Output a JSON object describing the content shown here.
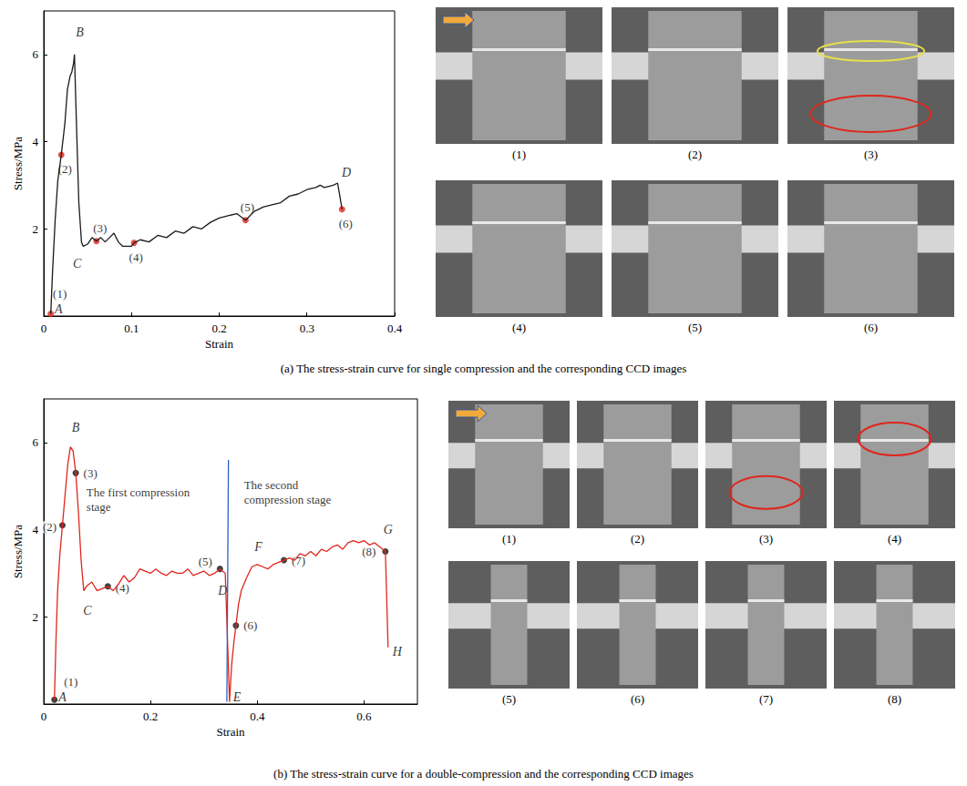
{
  "chart_data": [
    {
      "type": "line",
      "title": "(a) The stress-strain curve for single compression and the corresponding CCD images",
      "x_label": "Strain",
      "y_label": "Stress/MPa",
      "xlim": [
        0,
        0.4
      ],
      "xticks": [
        0,
        0.1,
        0.2,
        0.3,
        0.4
      ],
      "ylim": [
        0,
        7
      ],
      "yticks": [
        2,
        4,
        6
      ],
      "grid": false,
      "series": [
        {
          "type": "line",
          "color": "#1a1a1a",
          "x": [
            0.008,
            0.01,
            0.013,
            0.016,
            0.02,
            0.024,
            0.027,
            0.03,
            0.032,
            0.034,
            0.035,
            0.037,
            0.04,
            0.043,
            0.045,
            0.05,
            0.055,
            0.06,
            0.065,
            0.07,
            0.075,
            0.08,
            0.085,
            0.09,
            0.095,
            0.1,
            0.103,
            0.11,
            0.12,
            0.13,
            0.14,
            0.15,
            0.16,
            0.17,
            0.18,
            0.19,
            0.2,
            0.21,
            0.22,
            0.23,
            0.24,
            0.25,
            0.26,
            0.27,
            0.28,
            0.29,
            0.3,
            0.31,
            0.315,
            0.32,
            0.33,
            0.335,
            0.338,
            0.34
          ],
          "values": [
            0.05,
            1.0,
            2.2,
            3.1,
            3.7,
            4.4,
            5.2,
            5.5,
            5.6,
            5.8,
            6.0,
            4.6,
            2.6,
            1.7,
            1.6,
            1.65,
            1.8,
            1.72,
            1.8,
            1.7,
            1.8,
            1.9,
            1.7,
            1.6,
            1.6,
            1.6,
            1.68,
            1.75,
            1.7,
            1.85,
            1.8,
            1.95,
            1.9,
            2.05,
            2.0,
            2.15,
            2.25,
            2.3,
            2.35,
            2.2,
            2.4,
            2.5,
            2.55,
            2.6,
            2.75,
            2.8,
            2.9,
            2.95,
            3.0,
            2.95,
            3.0,
            3.05,
            2.7,
            2.45
          ]
        },
        {
          "type": "scatter",
          "color": "#e0261c",
          "marker": "circle",
          "x": [
            0.008,
            0.02,
            0.06,
            0.103,
            0.23,
            0.34
          ],
          "values": [
            0.05,
            3.7,
            1.72,
            1.68,
            2.2,
            2.45
          ],
          "point_labels": [
            "(1)",
            "(2)",
            "(3)",
            "(4)",
            "(5)",
            "(6)"
          ]
        }
      ],
      "annotations": [
        {
          "text": "A",
          "x": 0.017,
          "y": 0.15
        },
        {
          "text": "B",
          "x": 0.041,
          "y": 6.5
        },
        {
          "text": "C",
          "x": 0.038,
          "y": 1.2
        },
        {
          "text": "D",
          "x": 0.345,
          "y": 3.3
        }
      ],
      "image_labels": [
        "(1)",
        "(2)",
        "(3)",
        "(4)",
        "(5)",
        "(6)"
      ]
    },
    {
      "type": "line",
      "title": "(b) The stress-strain curve for a double-compression and the corresponding CCD images",
      "x_label": "Strain",
      "y_label": "Stress/MPa",
      "xlim": [
        0,
        0.7
      ],
      "xticks": [
        0,
        0.2,
        0.4,
        0.6
      ],
      "ylim": [
        0,
        7
      ],
      "yticks": [
        2,
        4,
        6
      ],
      "grid": false,
      "series": [
        {
          "type": "line",
          "color": "#e0261c",
          "x": [
            0.02,
            0.023,
            0.026,
            0.03,
            0.035,
            0.04,
            0.045,
            0.05,
            0.055,
            0.06,
            0.065,
            0.07,
            0.075,
            0.08,
            0.09,
            0.1,
            0.11,
            0.12,
            0.13,
            0.14,
            0.15,
            0.16,
            0.17,
            0.18,
            0.19,
            0.2,
            0.21,
            0.22,
            0.23,
            0.24,
            0.25,
            0.26,
            0.27,
            0.28,
            0.29,
            0.3,
            0.31,
            0.32,
            0.33,
            0.34,
            0.345,
            0.348,
            0.352,
            0.356,
            0.36,
            0.365,
            0.37,
            0.38,
            0.39,
            0.4,
            0.41,
            0.42,
            0.43,
            0.44,
            0.45,
            0.46,
            0.47,
            0.48,
            0.49,
            0.5,
            0.51,
            0.52,
            0.53,
            0.54,
            0.55,
            0.56,
            0.57,
            0.58,
            0.59,
            0.6,
            0.61,
            0.62,
            0.63,
            0.64,
            0.643,
            0.645
          ],
          "values": [
            0.1,
            1.5,
            2.6,
            3.4,
            4.1,
            4.8,
            5.5,
            5.9,
            5.8,
            5.3,
            4.4,
            3.3,
            2.6,
            2.7,
            2.8,
            2.6,
            2.65,
            2.7,
            2.6,
            2.75,
            2.95,
            2.8,
            2.9,
            3.1,
            3.05,
            3.0,
            3.1,
            3.0,
            2.95,
            3.05,
            3.0,
            3.0,
            3.1,
            2.95,
            3.0,
            3.05,
            2.95,
            3.0,
            3.1,
            3.0,
            1.2,
            0.05,
            0.9,
            1.4,
            1.8,
            2.3,
            2.6,
            2.9,
            3.15,
            3.2,
            3.15,
            3.1,
            3.2,
            3.25,
            3.3,
            3.35,
            3.3,
            3.45,
            3.4,
            3.5,
            3.4,
            3.55,
            3.5,
            3.6,
            3.65,
            3.55,
            3.7,
            3.75,
            3.7,
            3.75,
            3.65,
            3.7,
            3.6,
            3.5,
            2.2,
            1.3
          ]
        },
        {
          "type": "line",
          "color": "#2a62c9",
          "x": [
            0.343,
            0.346
          ],
          "values": [
            0.05,
            5.6
          ]
        },
        {
          "type": "scatter",
          "color": "#111111",
          "marker": "circle",
          "x": [
            0.02,
            0.035,
            0.06,
            0.12,
            0.33,
            0.36,
            0.45,
            0.64
          ],
          "values": [
            0.1,
            4.1,
            5.3,
            2.7,
            3.1,
            1.8,
            3.3,
            3.5
          ],
          "point_labels": [
            "(1)",
            "(2)",
            "(3)",
            "(4)",
            "(5)",
            "(6)",
            "(7)",
            "(8)"
          ]
        }
      ],
      "annotations": [
        {
          "text": "A",
          "x": 0.035,
          "y": 0.15
        },
        {
          "text": "B",
          "x": 0.06,
          "y": 6.35
        },
        {
          "text": "C",
          "x": 0.082,
          "y": 2.15
        },
        {
          "text": "D",
          "x": 0.335,
          "y": 2.6
        },
        {
          "text": "E",
          "x": 0.362,
          "y": 0.15
        },
        {
          "text": "F",
          "x": 0.402,
          "y": 3.6
        },
        {
          "text": "G",
          "x": 0.645,
          "y": 4.0
        },
        {
          "text": "H",
          "x": 0.662,
          "y": 1.2
        },
        {
          "text": "The first compression stage",
          "x": 0.08,
          "y": 4.7
        },
        {
          "text": "The second compression stage",
          "x": 0.375,
          "y": 4.85
        }
      ],
      "image_labels": [
        "(1)",
        "(2)",
        "(3)",
        "(4)",
        "(5)",
        "(6)",
        "(7)",
        "(8)"
      ]
    }
  ]
}
